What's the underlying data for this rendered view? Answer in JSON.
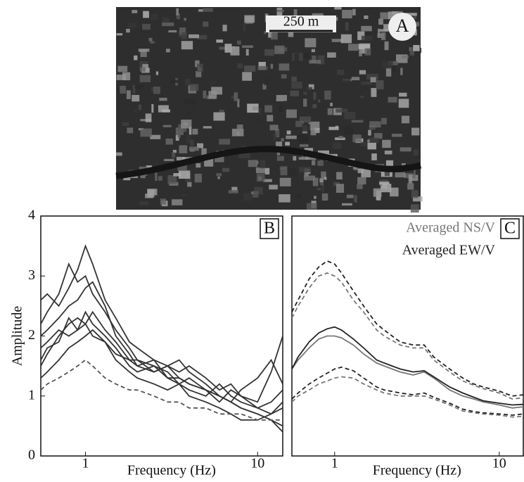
{
  "image": {
    "scale_label": "250 m",
    "panel_label": "A"
  },
  "chart_data": [
    {
      "type": "line",
      "panel_label": "B",
      "xlabel": "Frequency (Hz)",
      "ylabel": "Amplitude",
      "log_x": true,
      "xlim": [
        0.55,
        14
      ],
      "ylim": [
        0,
        4
      ],
      "xticks": [
        1,
        10
      ],
      "yticks": [
        0,
        1,
        2,
        3,
        4
      ],
      "x": [
        0.55,
        0.6,
        0.7,
        0.8,
        0.9,
        1,
        1.1,
        1.3,
        1.5,
        1.8,
        2,
        2.5,
        3,
        3.5,
        4,
        5,
        6,
        7,
        8,
        10,
        12,
        14
      ],
      "series": [
        {
          "color": "#333333",
          "values": [
            2.6,
            2.7,
            2.5,
            2.8,
            3.1,
            3.5,
            3.2,
            2.6,
            2.3,
            1.9,
            1.8,
            1.6,
            1.5,
            1.4,
            1.5,
            1.3,
            1.1,
            1.2,
            1.0,
            0.9,
            1.4,
            2.0
          ]
        },
        {
          "color": "#333333",
          "values": [
            1.5,
            1.7,
            2.0,
            2.2,
            2.3,
            2.2,
            2.0,
            1.9,
            1.7,
            1.6,
            1.5,
            1.4,
            1.5,
            1.6,
            1.4,
            1.2,
            1.0,
            0.9,
            0.8,
            0.7,
            0.6,
            0.5
          ]
        },
        {
          "color": "#333333",
          "values": [
            2.2,
            2.4,
            2.7,
            3.2,
            2.9,
            3.0,
            2.7,
            2.4,
            2.1,
            1.8,
            1.6,
            1.5,
            1.3,
            1.2,
            1.3,
            1.1,
            0.9,
            1.1,
            1.0,
            0.8,
            0.9,
            1.1
          ]
        },
        {
          "color": "#333333",
          "values": [
            1.8,
            1.9,
            2.1,
            2.0,
            2.1,
            2.4,
            2.2,
            2.0,
            1.8,
            1.5,
            1.4,
            1.5,
            1.4,
            1.2,
            1.1,
            1.0,
            1.2,
            1.0,
            0.9,
            0.8,
            0.7,
            0.8
          ]
        },
        {
          "color": "#333333",
          "values": [
            1.3,
            1.4,
            1.6,
            1.8,
            1.9,
            2.0,
            2.1,
            1.9,
            1.6,
            1.4,
            1.3,
            1.2,
            1.1,
            1.2,
            1.0,
            0.9,
            0.8,
            0.7,
            0.6,
            0.6,
            0.7,
            0.9
          ]
        },
        {
          "color": "#333333",
          "values": [
            2.0,
            2.1,
            2.3,
            2.5,
            2.6,
            2.8,
            2.9,
            2.5,
            2.0,
            1.7,
            1.5,
            1.6,
            1.3,
            1.3,
            1.2,
            1.1,
            1.0,
            0.9,
            1.1,
            1.3,
            1.6,
            1.2
          ]
        },
        {
          "color": "#333333",
          "values": [
            1.6,
            1.8,
            1.9,
            2.3,
            2.1,
            2.2,
            2.4,
            2.1,
            1.9,
            1.6,
            1.6,
            1.4,
            1.5,
            1.3,
            1.2,
            1.1,
            1.0,
            0.9,
            0.8,
            0.7,
            0.6,
            0.4
          ]
        },
        {
          "color": "#555555",
          "dashed": true,
          "values": [
            1.1,
            1.2,
            1.3,
            1.4,
            1.5,
            1.6,
            1.5,
            1.3,
            1.2,
            1.1,
            1.1,
            1.0,
            0.9,
            0.9,
            0.8,
            0.8,
            0.7,
            0.7,
            0.7,
            0.6,
            0.6,
            0.6
          ]
        }
      ]
    },
    {
      "type": "line",
      "panel_label": "C",
      "xlabel": "Frequency (Hz)",
      "log_x": true,
      "xlim": [
        0.55,
        14
      ],
      "ylim": [
        0,
        4
      ],
      "xticks": [
        1,
        10
      ],
      "x": [
        0.55,
        0.6,
        0.7,
        0.8,
        0.9,
        1,
        1.1,
        1.3,
        1.5,
        1.8,
        2,
        2.5,
        3,
        3.5,
        4,
        5,
        6,
        7,
        8,
        10,
        12,
        14
      ],
      "series": [
        {
          "name": "Averaged NS/V",
          "color": "#777777",
          "values": [
            1.45,
            1.6,
            1.8,
            1.95,
            2.0,
            2.0,
            1.97,
            1.85,
            1.7,
            1.55,
            1.5,
            1.4,
            1.35,
            1.4,
            1.3,
            1.1,
            1.0,
            0.95,
            0.9,
            0.85,
            0.8,
            0.82
          ]
        },
        {
          "name": "Averaged EW/V",
          "color": "#222222",
          "values": [
            1.45,
            1.65,
            1.9,
            2.05,
            2.12,
            2.15,
            2.1,
            1.95,
            1.8,
            1.6,
            1.55,
            1.45,
            1.4,
            1.42,
            1.32,
            1.15,
            1.05,
            0.98,
            0.92,
            0.88,
            0.85,
            0.86
          ]
        },
        {
          "color": "#777777",
          "dashed": true,
          "values": [
            2.3,
            2.5,
            2.8,
            3.0,
            3.05,
            3.0,
            2.9,
            2.6,
            2.4,
            2.1,
            2.0,
            1.85,
            1.8,
            1.8,
            1.6,
            1.4,
            1.25,
            1.18,
            1.12,
            1.05,
            0.95,
            0.97
          ]
        },
        {
          "color": "#222222",
          "dashed": true,
          "values": [
            2.4,
            2.6,
            2.95,
            3.15,
            3.25,
            3.2,
            3.05,
            2.75,
            2.5,
            2.2,
            2.1,
            1.9,
            1.85,
            1.85,
            1.65,
            1.45,
            1.3,
            1.2,
            1.15,
            1.08,
            1.0,
            1.02
          ]
        },
        {
          "color": "#777777",
          "dashed": true,
          "values": [
            0.9,
            1.0,
            1.1,
            1.2,
            1.25,
            1.3,
            1.32,
            1.3,
            1.2,
            1.1,
            1.05,
            1.0,
            1.0,
            1.0,
            0.95,
            0.85,
            0.75,
            0.72,
            0.7,
            0.68,
            0.65,
            0.66
          ]
        },
        {
          "color": "#222222",
          "dashed": true,
          "values": [
            0.95,
            1.05,
            1.2,
            1.3,
            1.38,
            1.45,
            1.48,
            1.42,
            1.3,
            1.15,
            1.1,
            1.05,
            1.02,
            1.05,
            0.98,
            0.88,
            0.78,
            0.74,
            0.72,
            0.7,
            0.68,
            0.7
          ]
        }
      ]
    }
  ]
}
